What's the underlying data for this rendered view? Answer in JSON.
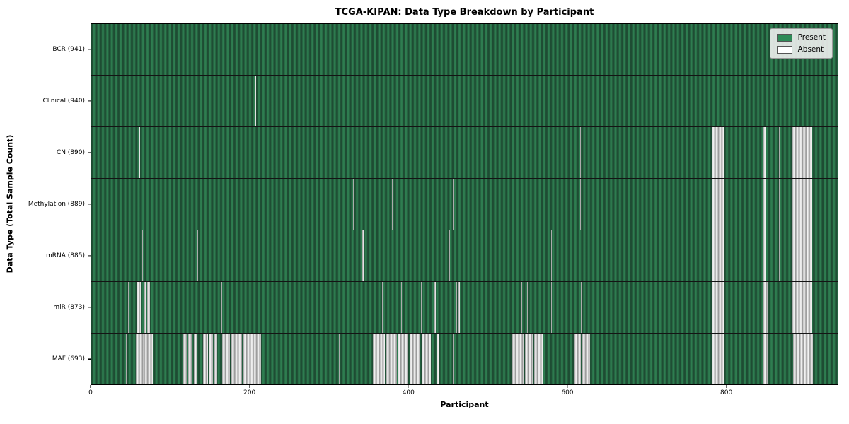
{
  "title": "TCGA-KIPAN: Data Type Breakdown by Participant",
  "xlabel": "Participant",
  "ylabel": "Data Type (Total Sample Count)",
  "legend": {
    "items": [
      {
        "label": "Present",
        "swatch": "#2e8b57"
      },
      {
        "label": "Absent",
        "swatch": "#ffffff"
      }
    ]
  },
  "colors": {
    "present_green": "#2e8b57",
    "present_dark_stripe": "#1e4c33",
    "absent_gray": "#bdbdbd",
    "absent_light": "#f0f0f0",
    "row_separator": "#141414",
    "plot_border": "#000000"
  },
  "chart_data": {
    "type": "heatmap",
    "title": "TCGA-KIPAN: Data Type Breakdown by Participant",
    "xlabel": "Participant",
    "ylabel": "Data Type (Total Sample Count)",
    "legend_position": "upper right",
    "n_participants": 941,
    "x_ticks": [
      0,
      200,
      400,
      600,
      800
    ],
    "xlim": [
      0,
      941
    ],
    "cell_values": {
      "present": 1,
      "absent": 0
    },
    "rows": [
      {
        "label": "BCR (941)",
        "data_type": "BCR",
        "present_count": 941,
        "absent_segments": []
      },
      {
        "label": "Clinical (940)",
        "data_type": "Clinical",
        "present_count": 940,
        "absent_segments": [
          [
            206,
            207.5
          ]
        ]
      },
      {
        "label": "CN (890)",
        "data_type": "CN",
        "present_count": 890,
        "absent_segments": [
          [
            60,
            61.2
          ],
          [
            62.5,
            63.5
          ],
          [
            616,
            617
          ],
          [
            782,
            797
          ],
          [
            847,
            850
          ],
          [
            867,
            868
          ],
          [
            884,
            909
          ]
        ]
      },
      {
        "label": "Methylation (889)",
        "data_type": "Methylation",
        "present_count": 889,
        "absent_segments": [
          [
            47,
            48.5
          ],
          [
            330,
            331
          ],
          [
            379,
            380
          ],
          [
            456,
            457
          ],
          [
            616,
            617
          ],
          [
            782,
            797
          ],
          [
            847,
            850
          ],
          [
            867,
            868
          ],
          [
            884,
            909
          ]
        ]
      },
      {
        "label": "mRNA (885)",
        "data_type": "mRNA",
        "present_count": 885,
        "absent_segments": [
          [
            64,
            65.5
          ],
          [
            134,
            135
          ],
          [
            141.5,
            143
          ],
          [
            342,
            343
          ],
          [
            451,
            452
          ],
          [
            580,
            581
          ],
          [
            618,
            619
          ],
          [
            782,
            797
          ],
          [
            847,
            850
          ],
          [
            867,
            868
          ],
          [
            884,
            909
          ]
        ]
      },
      {
        "label": "miR (873)",
        "data_type": "miR",
        "present_count": 873,
        "absent_segments": [
          [
            46,
            47
          ],
          [
            57,
            59.5
          ],
          [
            60.5,
            63.5
          ],
          [
            67,
            69.5
          ],
          [
            70.5,
            74
          ],
          [
            164,
            165
          ],
          [
            367,
            368
          ],
          [
            391,
            392
          ],
          [
            410,
            411
          ],
          [
            416,
            417
          ],
          [
            433,
            434
          ],
          [
            460,
            461
          ],
          [
            463,
            464.5
          ],
          [
            542,
            543
          ],
          [
            549,
            550
          ],
          [
            580,
            581
          ],
          [
            617,
            619
          ],
          [
            782,
            797
          ],
          [
            847,
            853
          ],
          [
            884,
            909
          ]
        ]
      },
      {
        "label": "MAF (693)",
        "data_type": "MAF",
        "present_count": 693,
        "absent_segments": [
          [
            44,
            45
          ],
          [
            56,
            66
          ],
          [
            67,
            78
          ],
          [
            116,
            121
          ],
          [
            122.5,
            127
          ],
          [
            129,
            133
          ],
          [
            141,
            147
          ],
          [
            148.5,
            153
          ],
          [
            155,
            159
          ],
          [
            165,
            175
          ],
          [
            176.5,
            190
          ],
          [
            191.5,
            203
          ],
          [
            204.5,
            214
          ],
          [
            279,
            280
          ],
          [
            312,
            313
          ],
          [
            355,
            370
          ],
          [
            371.5,
            385
          ],
          [
            386.5,
            400
          ],
          [
            401.5,
            415
          ],
          [
            416.5,
            428
          ],
          [
            435,
            439
          ],
          [
            456,
            457
          ],
          [
            531,
            545
          ],
          [
            546.5,
            557
          ],
          [
            558.5,
            569
          ],
          [
            609,
            617
          ],
          [
            619,
            629
          ],
          [
            782,
            797
          ],
          [
            847,
            853
          ],
          [
            885,
            910
          ]
        ]
      }
    ]
  }
}
